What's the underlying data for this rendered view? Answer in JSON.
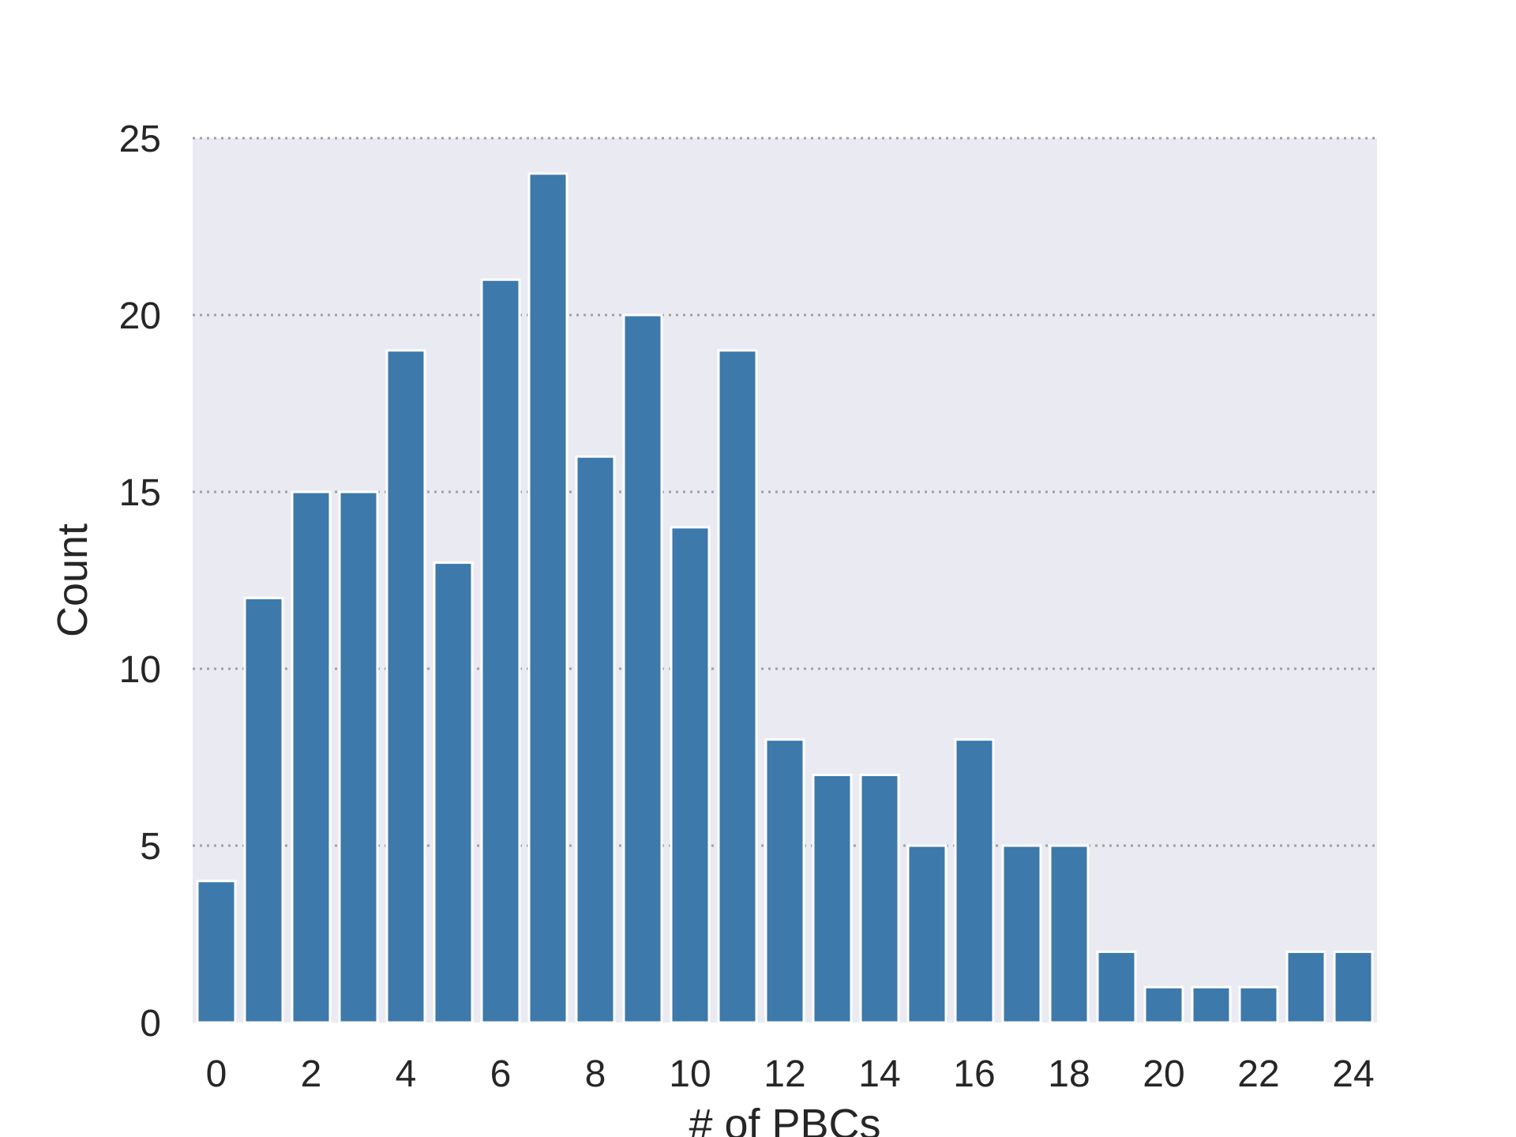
{
  "chart_data": {
    "type": "bar",
    "xlabel": "# of PBCs",
    "ylabel": "Count",
    "categories": [
      0,
      1,
      2,
      3,
      4,
      5,
      6,
      7,
      8,
      9,
      10,
      11,
      12,
      13,
      14,
      15,
      16,
      17,
      18,
      19,
      20,
      21,
      22,
      23,
      24
    ],
    "values": [
      4,
      12,
      15,
      15,
      19,
      13,
      21,
      24,
      16,
      20,
      14,
      19,
      8,
      7,
      7,
      5,
      8,
      5,
      5,
      2,
      1,
      1,
      1,
      2,
      2
    ],
    "x_tick_labels": [
      "0",
      "2",
      "4",
      "6",
      "8",
      "10",
      "12",
      "14",
      "16",
      "18",
      "20",
      "22",
      "24"
    ],
    "y_ticks": [
      0,
      5,
      10,
      15,
      20,
      25
    ],
    "ylim": [
      0,
      25
    ],
    "grid": "horizontal dotted",
    "colors": {
      "bar": "#3d79aa",
      "bar_edge": "#ffffff",
      "plot_bg": "#eaeaf2",
      "grid": "#a0a0a0",
      "text": "#262626"
    }
  }
}
